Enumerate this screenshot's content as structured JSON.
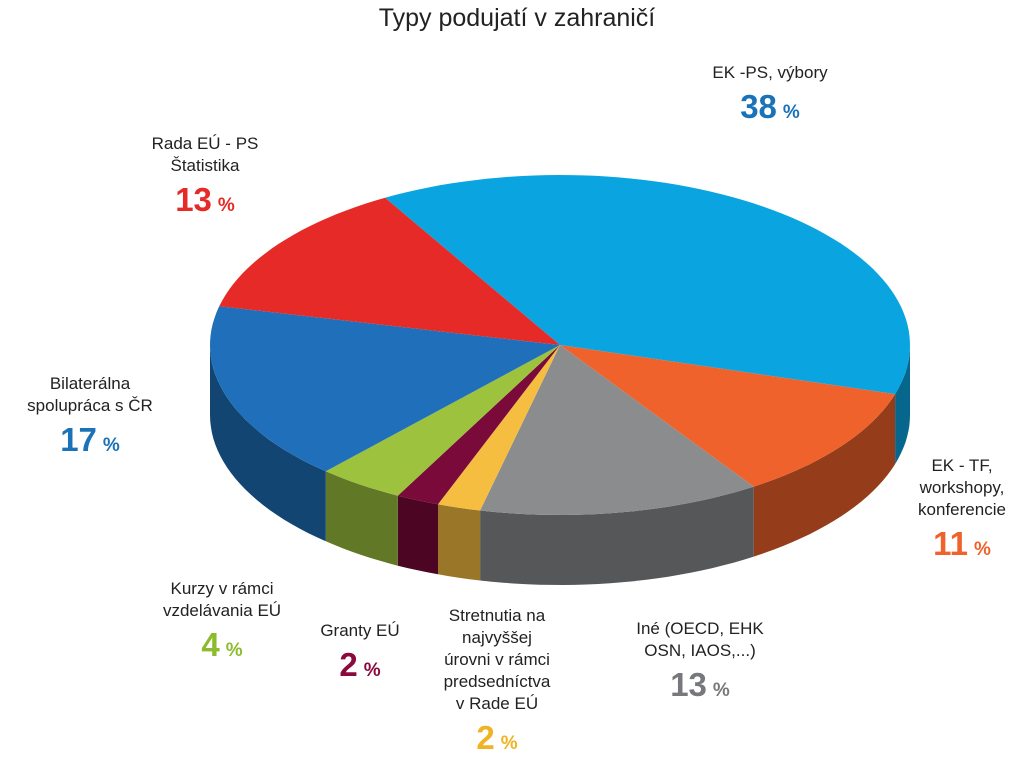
{
  "chart_data": {
    "type": "pie",
    "title": "Typy podujatí v zahraničí",
    "unit": "%",
    "categories": [
      "EK -PS, výbory",
      "EK - TF, workshopy, konferencie",
      "Iné (OECD, EHK OSN, IAOS,...)",
      "Stretnutia na najvyššej úrovni v rámci predsedníctva v Rade EÚ",
      "Granty EÚ",
      "Kurzy v rámci vzdelávania EÚ",
      "Bilaterálna spolupráca s ČR",
      "Rada EÚ - PS Štatistika"
    ],
    "values": [
      38,
      11,
      13,
      2,
      2,
      4,
      17,
      13
    ],
    "colors": [
      "#0aa5e0",
      "#f0622c",
      "#8a8c8e",
      "#f6be41",
      "#7a0a3a",
      "#9cc23e",
      "#1f6fba",
      "#e52a27"
    ],
    "label_colors": [
      "#1a73b8",
      "#f0622c",
      "#77787b",
      "#f0b323",
      "#8a0a3e",
      "#8dbb2e",
      "#1a73b8",
      "#e52a27"
    ]
  }
}
